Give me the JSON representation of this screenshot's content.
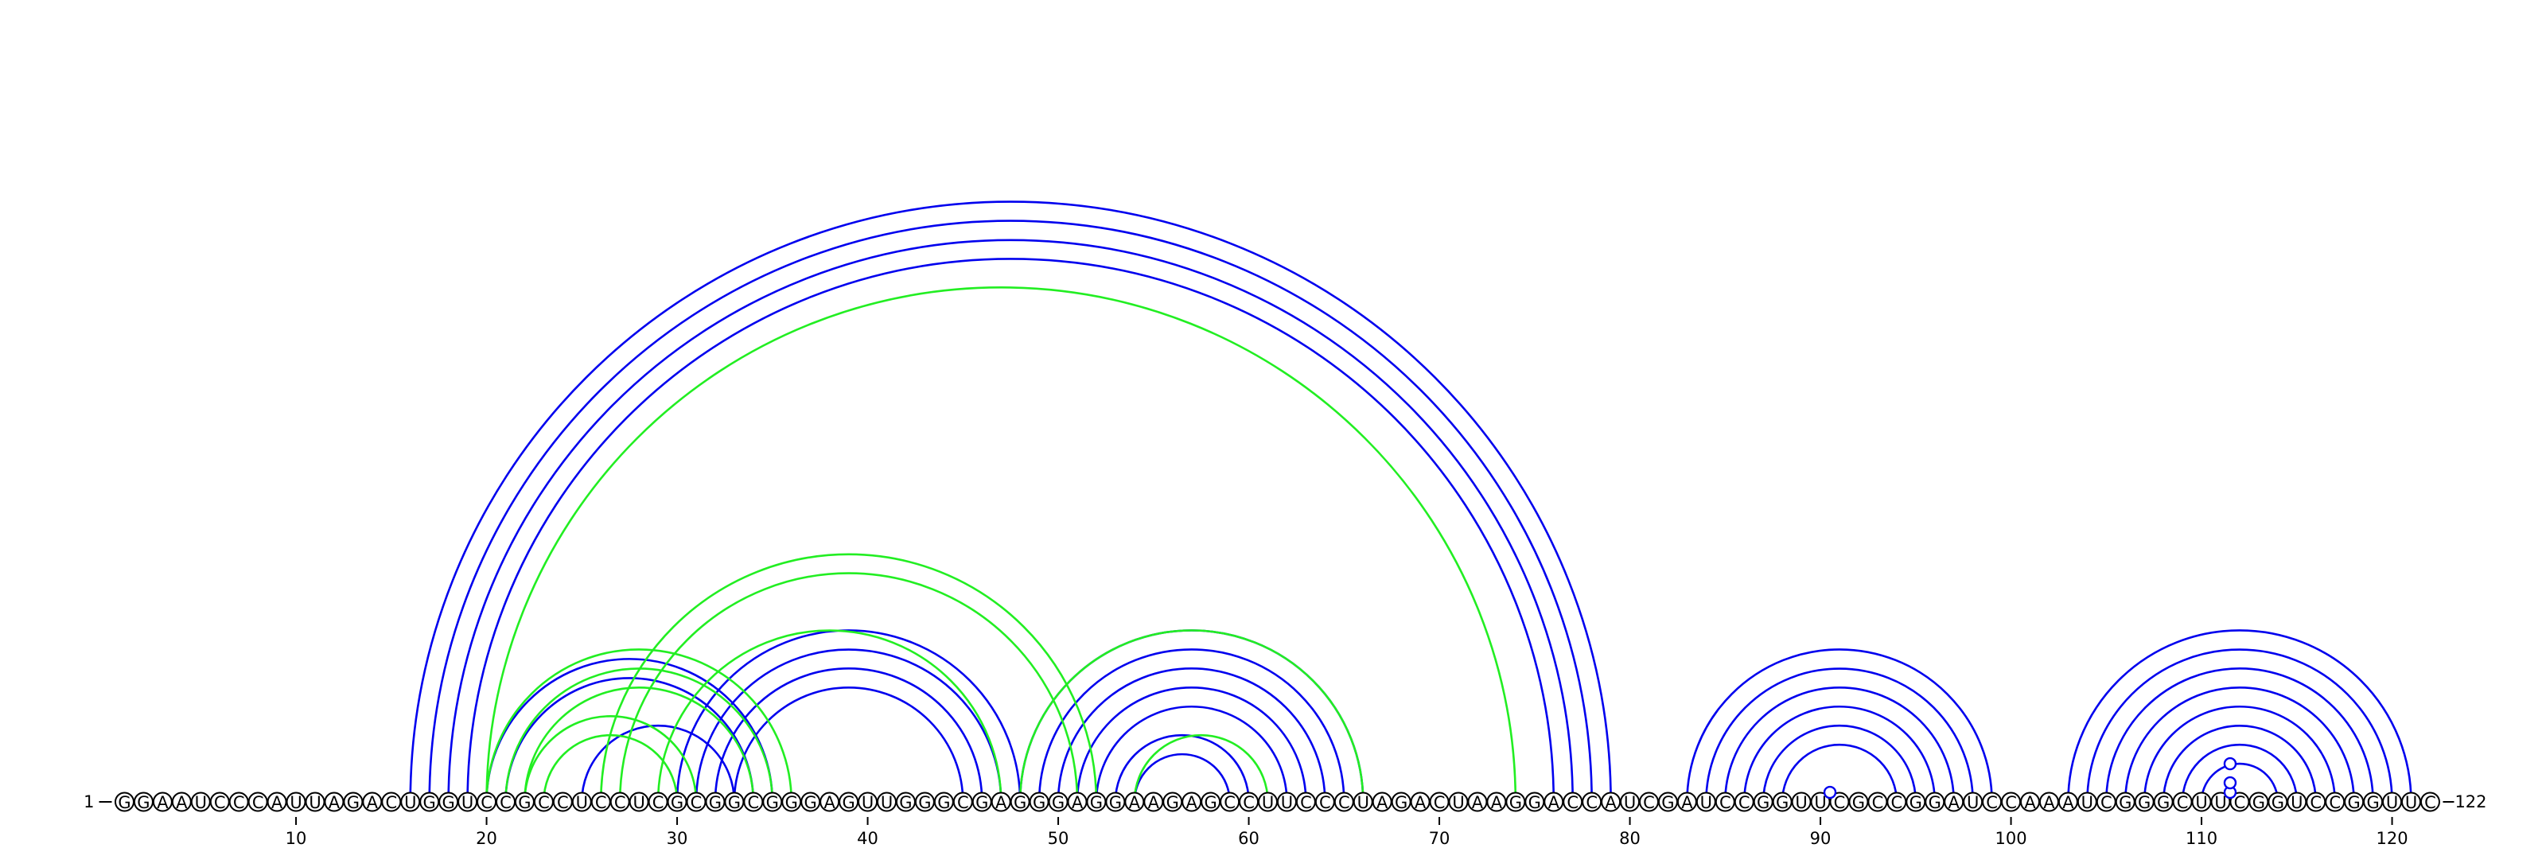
{
  "sequence": "GGAAUCCCAUUAGACUGGUCCGCCUCCUCGCGGCGGGAGUUGGGCGAGGGAGGAAGAGCCUUCCCUAGACUAAGGACCAUCGAUCCGGUUCGCCGGAUCCAAAUCGGGCUUCGGUCCGGUUC",
  "start_label": "1",
  "end_label": "122",
  "ticks": [
    {
      "pos": 10,
      "label": "10"
    },
    {
      "pos": 20,
      "label": "20"
    },
    {
      "pos": 30,
      "label": "30"
    },
    {
      "pos": 40,
      "label": "40"
    },
    {
      "pos": 50,
      "label": "50"
    },
    {
      "pos": 60,
      "label": "60"
    },
    {
      "pos": 70,
      "label": "70"
    },
    {
      "pos": 80,
      "label": "80"
    },
    {
      "pos": 90,
      "label": "90"
    },
    {
      "pos": 100,
      "label": "100"
    },
    {
      "pos": 110,
      "label": "110"
    },
    {
      "pos": 120,
      "label": "120"
    }
  ],
  "colors": {
    "blue": "#0000ee",
    "green": "#22ee22",
    "text": "#000000"
  },
  "helices": [
    {
      "color": "blue",
      "i": 16,
      "j": 79,
      "len": 4
    },
    {
      "color": "blue",
      "i": 20,
      "j": 35,
      "len": 2
    },
    {
      "color": "blue",
      "i": 25,
      "j": 33,
      "len": 1
    },
    {
      "color": "blue",
      "i": 30,
      "j": 48,
      "len": 4
    },
    {
      "color": "blue",
      "i": 48,
      "j": 66,
      "len": 5
    },
    {
      "color": "blue",
      "i": 53,
      "j": 60,
      "len": 2
    },
    {
      "color": "blue",
      "i": 83,
      "j": 99,
      "len": 6
    },
    {
      "color": "blue",
      "i": 103,
      "j": 121,
      "len": 8
    },
    {
      "color": "green",
      "i": 20,
      "j": 74,
      "len": 1
    },
    {
      "color": "green",
      "i": 20,
      "j": 36,
      "len": 3
    },
    {
      "color": "green",
      "i": 22,
      "j": 31,
      "len": 2
    },
    {
      "color": "green",
      "i": 26,
      "j": 52,
      "len": 2
    },
    {
      "color": "green",
      "i": 29,
      "j": 47,
      "len": 1
    },
    {
      "color": "green",
      "i": 48,
      "j": 66,
      "len": 1
    },
    {
      "color": "green",
      "i": 54,
      "j": 61,
      "len": 1
    }
  ],
  "markers": [
    {
      "pos": 90.5,
      "level": 1,
      "color": "blue"
    },
    {
      "pos": 111.5,
      "level": 1,
      "color": "blue"
    },
    {
      "pos": 111.5,
      "level": 2,
      "color": "blue"
    },
    {
      "pos": 111.5,
      "level": 4,
      "color": "blue"
    }
  ]
}
